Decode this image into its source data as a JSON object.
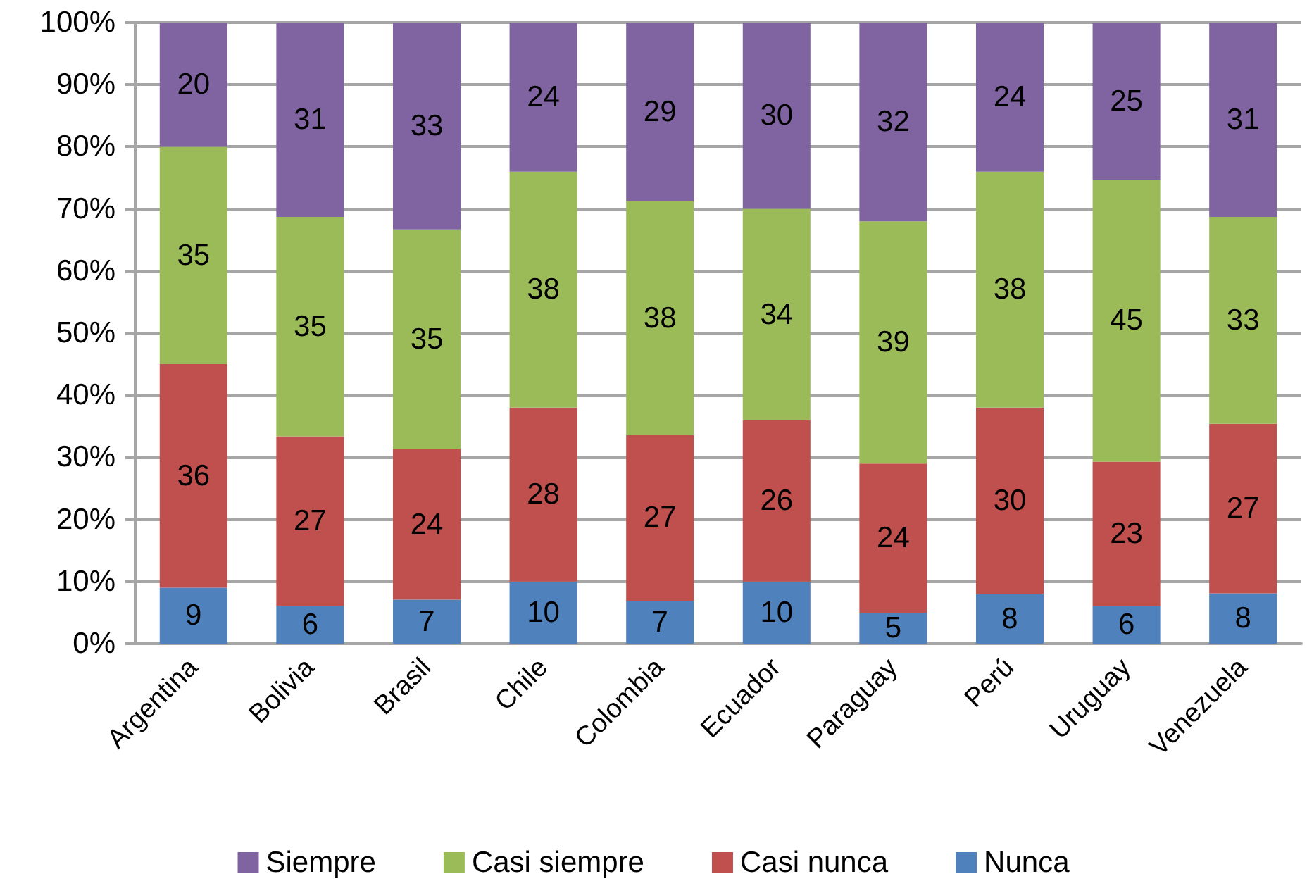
{
  "chart_data": {
    "type": "bar",
    "stacked": true,
    "categories": [
      "Argentina",
      "Bolivia",
      "Brasil",
      "Chile",
      "Colombia",
      "Ecuador",
      "Paraguay",
      "Perú",
      "Uruguay",
      "Venezuela"
    ],
    "series": [
      {
        "name": "Nunca",
        "color": "#4f81bd",
        "values": [
          9,
          6.1,
          7.1,
          10,
          6.9,
          10,
          5,
          8,
          6.1,
          8.1
        ],
        "value_labels": [
          "9",
          "6",
          "7",
          "10",
          "7",
          "10",
          "5",
          "8",
          "6",
          "8"
        ]
      },
      {
        "name": "Casi nunca",
        "color": "#c0504d",
        "values": [
          36,
          27.3,
          24.2,
          28,
          26.7,
          26,
          24,
          30,
          23.2,
          27.3
        ],
        "value_labels": [
          "36",
          "27",
          "24",
          "28",
          "27",
          "26",
          "24",
          "30",
          "23",
          "27"
        ]
      },
      {
        "name": "Casi siempre",
        "color": "#9bbb59",
        "values": [
          35,
          35.3,
          35.4,
          38,
          37.6,
          34,
          39,
          38,
          45.4,
          33.3
        ],
        "value_labels": [
          "35",
          "35",
          "35",
          "38",
          "38",
          "34",
          "39",
          "38",
          "45",
          "33"
        ]
      },
      {
        "name": "Siempre",
        "color": "#8064a2",
        "values": [
          20,
          31.3,
          33.3,
          24,
          28.8,
          30,
          32,
          24,
          25.3,
          31.3
        ],
        "value_labels": [
          "20",
          "31",
          "33",
          "24",
          "29",
          "30",
          "32",
          "24",
          "25",
          "31"
        ]
      }
    ],
    "ylim": [
      0,
      100
    ],
    "yticks": [
      {
        "value": 0,
        "label": "0%"
      },
      {
        "value": 10,
        "label": "10%"
      },
      {
        "value": 20,
        "label": "20%"
      },
      {
        "value": 30,
        "label": "30%"
      },
      {
        "value": 40,
        "label": "40%"
      },
      {
        "value": 50,
        "label": "50%"
      },
      {
        "value": 60,
        "label": "60%"
      },
      {
        "value": 70,
        "label": "70%"
      },
      {
        "value": 80,
        "label": "80%"
      },
      {
        "value": 90,
        "label": "90%"
      },
      {
        "value": 100,
        "label": "100%"
      }
    ],
    "grid": "y",
    "legend": "bottom"
  }
}
